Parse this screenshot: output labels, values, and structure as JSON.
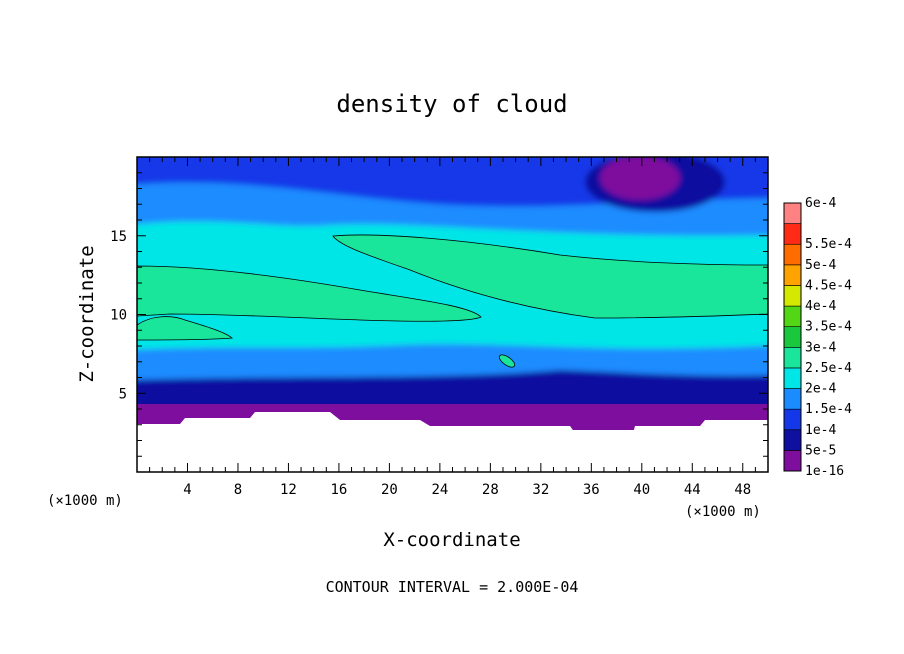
{
  "chart_data": {
    "type": "heatmap",
    "title": "density of cloud",
    "xlabel": "X-coordinate",
    "ylabel": "Z-coordinate",
    "x_unit": "(×1000 m)",
    "y_unit": "(×1000 m)",
    "xlim": [
      0,
      50
    ],
    "ylim": [
      0,
      20
    ],
    "x_ticks": [
      4,
      8,
      12,
      16,
      20,
      24,
      28,
      32,
      36,
      40,
      44,
      48
    ],
    "y_ticks": [
      5,
      10,
      15
    ],
    "colorbar": {
      "labels": [
        "1e-16",
        "5e-5",
        "1e-4",
        "1.5e-4",
        "2e-4",
        "2.5e-4",
        "3e-4",
        "3.5e-4",
        "4e-4",
        "4.5e-4",
        "5e-4",
        "5.5e-4",
        "6e-4"
      ],
      "values": [
        1e-16,
        5e-05,
        0.0001,
        0.00015,
        0.0002,
        0.00025,
        0.0003,
        0.00035,
        0.0004,
        0.00045,
        0.0005,
        0.00055,
        0.0006
      ],
      "colors": [
        "#7e0f9e",
        "#1010a0",
        "#1438e8",
        "#1a8cff",
        "#00e6e6",
        "#19e69b",
        "#19c83c",
        "#52d615",
        "#d4e800",
        "#ffa300",
        "#ff6c00",
        "#ff2b17",
        "#ff8282"
      ]
    },
    "regions": [
      {
        "level": "1e-16",
        "note": "ground-level band and top-right patch"
      },
      {
        "level": "2e-4",
        "note": "broad mid-level layer"
      },
      {
        "level": "2.5e-4",
        "note": "contoured maxima near z 9-15"
      }
    ],
    "footer": "CONTOUR INTERVAL = 2.000E-04"
  }
}
